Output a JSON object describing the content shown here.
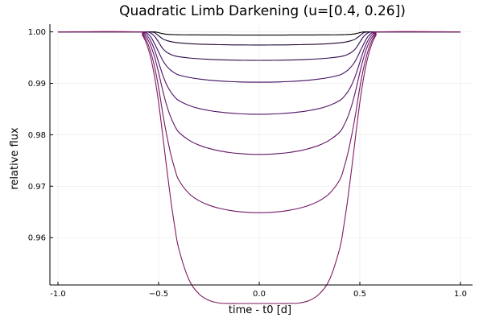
{
  "chart_data": {
    "type": "line",
    "title": "Quadratic Limb Darkening (u=[0.4, 0.26])",
    "xlabel": "time - t0 [d]",
    "ylabel": "relative flux",
    "xlim": [
      -1.04,
      1.06
    ],
    "ylim": [
      0.9508,
      1.0015
    ],
    "grid": true,
    "legend": "none",
    "x_ticks": [
      {
        "value": -1.0,
        "label": "-1.0"
      },
      {
        "value": -0.5,
        "label": "−0.5"
      },
      {
        "value": 0.0,
        "label": "0.0"
      },
      {
        "value": 0.5,
        "label": "0.5"
      },
      {
        "value": 1.0,
        "label": "1.0"
      }
    ],
    "y_ticks": [
      {
        "value": 0.96,
        "label": "0.96"
      },
      {
        "value": 0.97,
        "label": "0.97"
      },
      {
        "value": 0.98,
        "label": "0.98"
      },
      {
        "value": 0.99,
        "label": "0.99"
      },
      {
        "value": 1.0,
        "label": "1.00"
      }
    ],
    "x": [
      -1.0,
      -0.6,
      -0.58,
      -0.56,
      -0.54,
      -0.52,
      -0.5,
      -0.48,
      -0.46,
      -0.44,
      -0.42,
      -0.4,
      -0.35,
      -0.3,
      -0.25,
      -0.2,
      -0.15,
      -0.1,
      -0.05,
      0.0,
      0.05,
      0.1,
      0.15,
      0.2,
      0.25,
      0.3,
      0.35,
      0.4,
      0.42,
      0.44,
      0.46,
      0.48,
      0.5,
      0.52,
      0.54,
      0.56,
      0.58,
      0.6,
      1.0
    ],
    "series": [
      {
        "color": "#000000",
        "values": [
          1.0,
          1.0,
          1.0,
          1.0,
          1.0,
          1.0,
          0.99985,
          0.99965,
          0.99954,
          0.99949,
          0.99946,
          0.99944,
          0.99942,
          0.99941,
          0.9994,
          0.99939,
          0.99939,
          0.99938,
          0.99938,
          0.99938,
          0.99938,
          0.99938,
          0.99939,
          0.99939,
          0.9994,
          0.99941,
          0.99942,
          0.99944,
          0.99946,
          0.99949,
          0.99954,
          0.99965,
          0.99985,
          1.0,
          1.0,
          1.0,
          1.0,
          1.0,
          1.0
        ]
      },
      {
        "color": "#1d0832",
        "values": [
          1.0,
          1.0,
          1.0,
          1.0,
          1.0,
          0.99985,
          0.99925,
          0.99865,
          0.99832,
          0.99811,
          0.99797,
          0.99787,
          0.99772,
          0.99762,
          0.99756,
          0.99751,
          0.99748,
          0.99746,
          0.99745,
          0.99744,
          0.99745,
          0.99746,
          0.99748,
          0.99751,
          0.99756,
          0.99762,
          0.99772,
          0.99787,
          0.99797,
          0.99811,
          0.99832,
          0.99865,
          0.99925,
          0.99985,
          1.0,
          1.0,
          1.0,
          1.0,
          1.0
        ]
      },
      {
        "color": "#2e0a4f",
        "values": [
          1.0,
          1.0,
          1.0,
          1.0,
          0.9998,
          0.99915,
          0.998,
          0.9968,
          0.99605,
          0.99562,
          0.99535,
          0.99517,
          0.99493,
          0.99477,
          0.99466,
          0.99458,
          0.99453,
          0.99449,
          0.99447,
          0.99446,
          0.99447,
          0.99449,
          0.99453,
          0.99458,
          0.99466,
          0.99477,
          0.99493,
          0.99517,
          0.99535,
          0.99562,
          0.99605,
          0.9968,
          0.998,
          0.99915,
          0.9998,
          1.0,
          1.0,
          1.0,
          1.0
        ]
      },
      {
        "color": "#3f0d62",
        "values": [
          1.0,
          1.0,
          1.0,
          0.9998,
          0.9991,
          0.9977,
          0.9961,
          0.9945,
          0.99335,
          0.99255,
          0.992,
          0.99162,
          0.99115,
          0.99085,
          0.99062,
          0.99046,
          0.99035,
          0.99027,
          0.99023,
          0.99022,
          0.99023,
          0.99027,
          0.99035,
          0.99046,
          0.99062,
          0.99085,
          0.99115,
          0.99162,
          0.992,
          0.99255,
          0.99335,
          0.9945,
          0.9961,
          0.9977,
          0.9991,
          0.9998,
          1.0,
          1.0,
          1.0
        ]
      },
      {
        "color": "#511067",
        "values": [
          1.0,
          1.0,
          0.9999,
          0.9994,
          0.9983,
          0.9965,
          0.9941,
          0.9917,
          0.98975,
          0.98835,
          0.98735,
          0.98665,
          0.98572,
          0.98512,
          0.98472,
          0.98443,
          0.98423,
          0.98409,
          0.98401,
          0.98398,
          0.98401,
          0.98409,
          0.98423,
          0.98443,
          0.98472,
          0.98512,
          0.98572,
          0.98665,
          0.98735,
          0.98835,
          0.98975,
          0.9917,
          0.9941,
          0.9965,
          0.9983,
          0.9994,
          0.9999,
          1.0,
          1.0
        ]
      },
      {
        "color": "#621467",
        "values": [
          1.0,
          1.0,
          0.9997,
          0.9989,
          0.9974,
          0.9951,
          0.9921,
          0.9887,
          0.98575,
          0.98345,
          0.98175,
          0.98052,
          0.97898,
          0.978,
          0.97735,
          0.97688,
          0.97656,
          0.97635,
          0.97622,
          0.97618,
          0.97622,
          0.97635,
          0.97656,
          0.97688,
          0.97735,
          0.978,
          0.97898,
          0.98052,
          0.98175,
          0.98345,
          0.98575,
          0.9887,
          0.9921,
          0.9951,
          0.9974,
          0.9989,
          0.9997,
          1.0,
          1.0
        ]
      },
      {
        "color": "#731864",
        "values": [
          1.0,
          1.0,
          0.9995,
          0.9983,
          0.9962,
          0.9932,
          0.9892,
          0.9843,
          0.98,
          0.97632,
          0.97342,
          0.97122,
          0.96862,
          0.9672,
          0.96632,
          0.96572,
          0.96532,
          0.96505,
          0.9649,
          0.96485,
          0.9649,
          0.96505,
          0.96532,
          0.96572,
          0.96632,
          0.9672,
          0.96862,
          0.97122,
          0.97342,
          0.97632,
          0.98,
          0.9843,
          0.9892,
          0.9932,
          0.9962,
          0.9983,
          0.9995,
          1.0,
          1.0
        ]
      },
      {
        "color": "#7f1b5f",
        "values": [
          1.0,
          1.0,
          0.9993,
          0.9977,
          0.9951,
          0.9913,
          0.9863,
          0.9801,
          0.9736,
          0.9675,
          0.9622,
          0.9579,
          0.9519,
          0.9491,
          0.9478,
          0.9473,
          0.9472,
          0.9472,
          0.9472,
          0.9472,
          0.9472,
          0.9472,
          0.9472,
          0.9473,
          0.9478,
          0.9491,
          0.9519,
          0.9579,
          0.9622,
          0.9675,
          0.9736,
          0.9801,
          0.9863,
          0.9913,
          0.9951,
          0.9977,
          0.9993,
          1.0,
          1.0
        ]
      }
    ]
  }
}
